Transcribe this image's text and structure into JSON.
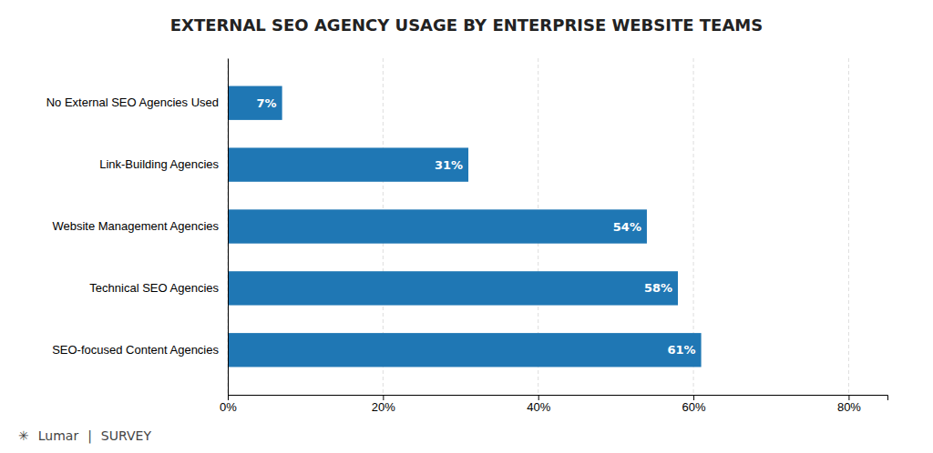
{
  "chart_data": {
    "type": "bar",
    "orientation": "horizontal",
    "title": "EXTERNAL SEO AGENCY USAGE BY ENTERPRISE WEBSITE TEAMS",
    "categories": [
      "SEO-focused Content Agencies",
      "Technical SEO Agencies",
      "Website Management Agencies",
      "Link-Building Agencies",
      "No External SEO Agencies Used"
    ],
    "values": [
      61,
      58,
      54,
      31,
      7
    ],
    "value_labels": [
      "61%",
      "58%",
      "54%",
      "31%",
      "7%"
    ],
    "data_labels": true,
    "xlim": [
      0,
      85
    ],
    "xticks": [
      {
        "value": 0,
        "label": "0%"
      },
      {
        "value": 20,
        "label": "20%"
      },
      {
        "value": 40,
        "label": "40%"
      },
      {
        "value": 60,
        "label": "60%"
      },
      {
        "value": 80,
        "label": "80%"
      }
    ],
    "grid": true,
    "annotations": [
      "✳",
      "Lumar",
      "|",
      "SURVEY"
    ]
  }
}
